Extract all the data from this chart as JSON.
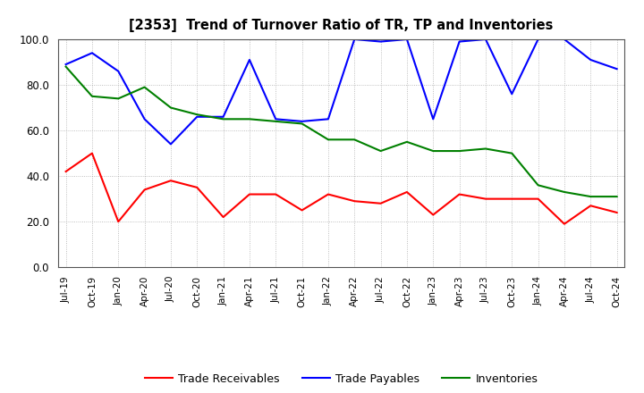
{
  "title": "[2353]  Trend of Turnover Ratio of TR, TP and Inventories",
  "xlabels": [
    "Jul-19",
    "Oct-19",
    "Jan-20",
    "Apr-20",
    "Jul-20",
    "Oct-20",
    "Jan-21",
    "Apr-21",
    "Jul-21",
    "Oct-21",
    "Jan-22",
    "Apr-22",
    "Jul-22",
    "Oct-22",
    "Jan-23",
    "Apr-23",
    "Jul-23",
    "Oct-23",
    "Jan-24",
    "Apr-24",
    "Jul-24",
    "Oct-24"
  ],
  "trade_receivables": [
    42,
    50,
    20,
    34,
    38,
    35,
    22,
    32,
    32,
    25,
    32,
    29,
    28,
    33,
    23,
    32,
    30,
    30,
    30,
    19,
    27,
    24
  ],
  "trade_payables": [
    89,
    94,
    86,
    65,
    54,
    66,
    66,
    91,
    65,
    64,
    65,
    100,
    99,
    100,
    65,
    99,
    100,
    76,
    100,
    100,
    91,
    87
  ],
  "inventories": [
    88,
    75,
    74,
    79,
    70,
    67,
    65,
    65,
    64,
    63,
    56,
    56,
    51,
    55,
    51,
    51,
    52,
    50,
    36,
    33,
    31,
    31
  ],
  "ylim": [
    0,
    100
  ],
  "yticks": [
    0.0,
    20.0,
    40.0,
    60.0,
    80.0,
    100.0
  ],
  "tr_color": "#FF0000",
  "tp_color": "#0000FF",
  "inv_color": "#008000",
  "legend_labels": [
    "Trade Receivables",
    "Trade Payables",
    "Inventories"
  ],
  "background_color": "#FFFFFF",
  "grid_color": "#999999"
}
